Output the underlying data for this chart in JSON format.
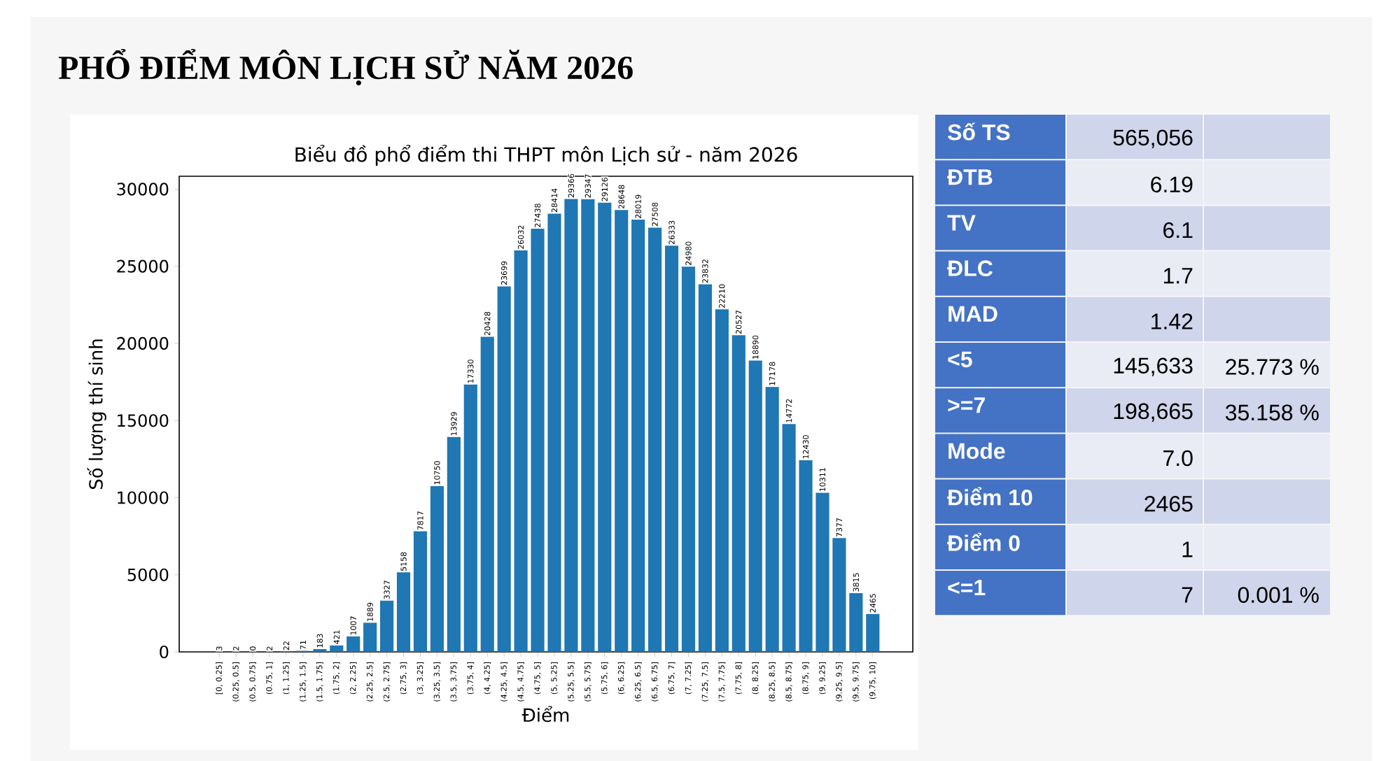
{
  "chart_data": [
    {
      "type": "bar",
      "title": "PHỔ ĐIỂM MÔN LỊCH SỬ NĂM 2026",
      "subtitle": "Biểu đồ phổ điểm thi THPT môn Lịch sử - năm 2026",
      "xlabel": "Điểm",
      "ylabel": "Số lượng thí sinh",
      "categories": [
        "[0, 0.25]",
        "(0.25, 0.5]",
        "(0.5, 0.75]",
        "(0.75, 1]",
        "(1, 1.25]",
        "(1.25, 1.5]",
        "(1.5, 1.75]",
        "(1.75, 2]",
        "(2, 2.25]",
        "(2.25, 2.5]",
        "(2.5, 2.75]",
        "(2.75, 3]",
        "(3, 3.25]",
        "(3.25, 3.5]",
        "(3.5, 3.75]",
        "(3.75, 4]",
        "(4, 4.25]",
        "(4.25, 4.5]",
        "(4.5, 4.75]",
        "(4.75, 5]",
        "(5, 5.25]",
        "(5.25, 5.5]",
        "(5.5, 5.75]",
        "(5.75, 6]",
        "(6, 6.25]",
        "(6.25, 6.5]",
        "(6.5, 6.75]",
        "(6.75, 7]",
        "(7, 7.25]",
        "(7.25, 7.5]",
        "(7.5, 7.75]",
        "(7.75, 8]",
        "(8, 8.25]",
        "(8.25, 8.5]",
        "(8.5, 8.75]",
        "(8.75, 9]",
        "(9, 9.25]",
        "(9.25, 9.5]",
        "(9.5, 9.75]",
        "(9.75, 10]"
      ],
      "values": [
        3,
        2,
        0,
        2,
        22,
        71,
        183,
        421,
        1007,
        1889,
        3327,
        5158,
        7817,
        10750,
        13929,
        17330,
        20428,
        23699,
        26032,
        27438,
        28414,
        29366,
        29347,
        29126,
        28648,
        28019,
        27508,
        26333,
        24980,
        23832,
        22210,
        20527,
        18890,
        17178,
        14772,
        12430,
        10311,
        7377,
        3815,
        2465
      ],
      "color": "#1f77b4",
      "data_labels": true,
      "ylim": [
        0,
        30835
      ],
      "yticks": [
        0,
        5000,
        10000,
        15000,
        20000,
        25000,
        30000
      ]
    },
    {
      "type": "other",
      "categories": [
        "Số TS",
        "ĐTB",
        "TV",
        "ĐLC",
        "MAD",
        "<5",
        ">=7",
        "Mode",
        "Điểm 10",
        "Điểm 0",
        "<=1"
      ],
      "cell_labels": [
        [
          "565,056",
          null
        ],
        [
          "6.19",
          null
        ],
        [
          "6.1",
          null
        ],
        [
          "1.7",
          null
        ],
        [
          "1.42",
          null
        ],
        [
          "145,633",
          "25.773 %"
        ],
        [
          "198,665",
          "35.158 %"
        ],
        [
          "7.0",
          null
        ],
        [
          "2465",
          null
        ],
        [
          "1",
          null
        ],
        [
          "7",
          "0.001 %"
        ]
      ],
      "colors": [
        "#4472c4",
        "#4472c4",
        "#4472c4",
        "#4472c4",
        "#4472c4",
        "#4472c4",
        "#4472c4",
        "#4472c4",
        "#4472c4",
        "#4472c4",
        "#4472c4"
      ]
    }
  ]
}
